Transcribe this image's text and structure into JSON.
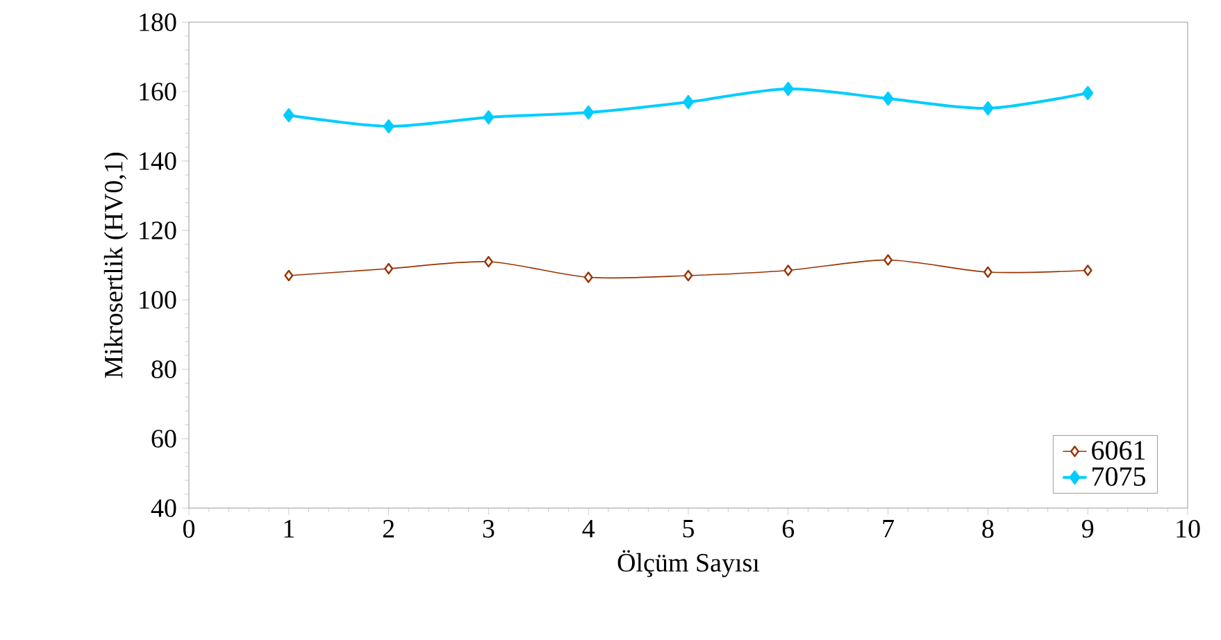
{
  "chart_data": {
    "type": "line",
    "xlabel": "Ölçüm Sayısı",
    "ylabel": "Mikrosertlik (HV0,1)",
    "x": [
      1,
      2,
      3,
      4,
      5,
      6,
      7,
      8,
      9
    ],
    "series": [
      {
        "name": "6061",
        "color": "#993300",
        "values": [
          107,
          109,
          111,
          106.5,
          107,
          108.5,
          111.5,
          108,
          108.5
        ]
      },
      {
        "name": "7075",
        "color": "#00ccff",
        "values": [
          153.2,
          150,
          152.6,
          154,
          157,
          160.8,
          158,
          155.2,
          159.6
        ]
      }
    ],
    "xlim": [
      0,
      10
    ],
    "xticks": [
      0,
      1,
      2,
      3,
      4,
      5,
      6,
      7,
      8,
      9,
      10
    ],
    "ylim": [
      40,
      180
    ],
    "yticks": [
      40,
      60,
      80,
      100,
      120,
      140,
      160,
      180
    ],
    "marker": "diamond",
    "legend": "bottom right",
    "grid": false
  }
}
